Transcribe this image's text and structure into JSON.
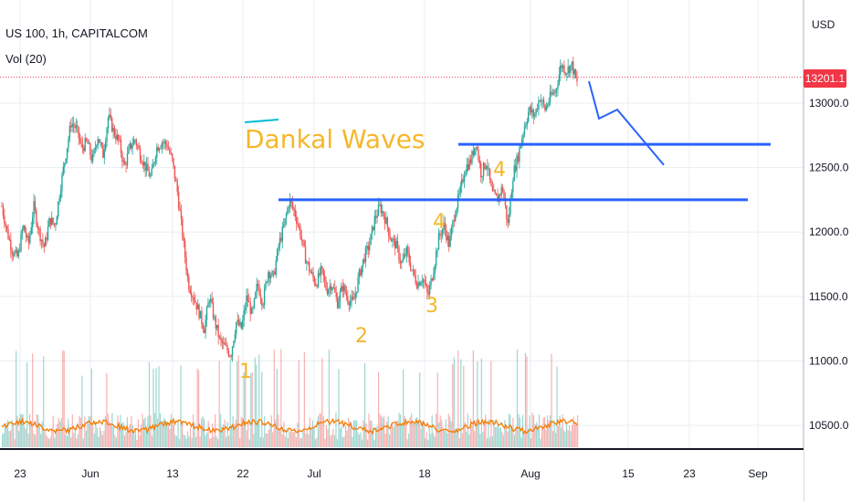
{
  "header": {
    "symbol_title": "US 100, 1h, CAPITALCOM",
    "volume_label": "Vol (20)",
    "axis_unit": "USD"
  },
  "current_price": {
    "label": "13201.1",
    "value": 13201.1,
    "color": "#f23645"
  },
  "colors": {
    "up_candle": "#26a69a",
    "down_candle": "#ef5350",
    "trend_line": "#2962ff",
    "annotation": "#f5b72a",
    "volume_ma": "#f57c00",
    "grid": "#e9edf3",
    "axis_text": "#131722"
  },
  "chart_data": {
    "type": "line",
    "ylim": [
      10300,
      13450
    ],
    "y_ticks": [
      10500,
      11000,
      11500,
      12000,
      12500,
      13000
    ],
    "y_tick_labels": [
      "10500.0",
      "11000.0",
      "11500.0",
      "12000.0",
      "12500.0",
      "13000.0"
    ],
    "x_tick_labels": [
      "23",
      "Jun",
      "13",
      "22",
      "Jul",
      "18",
      "Aug",
      "15",
      "23",
      "Sep"
    ],
    "series": [
      {
        "values": [
          12200,
          12000,
          11850,
          11800,
          12050,
          11900,
          12200,
          12000,
          11880,
          12100,
          12050,
          12350,
          12600,
          12850,
          12800,
          12650,
          12700,
          12550,
          12750,
          12600,
          12900,
          12780,
          12700,
          12500,
          12650,
          12720,
          12600,
          12500,
          12420,
          12650,
          12700,
          12680,
          12550,
          12300,
          11950,
          11600,
          11500,
          11380,
          11250,
          11500,
          11300,
          11150,
          11100,
          11050,
          11300,
          11250,
          11500,
          11350,
          11600,
          11450,
          11700,
          11650,
          11900,
          12050,
          12250,
          12150,
          12000,
          11800,
          11680,
          11600,
          11700,
          11550,
          11600,
          11450,
          11580,
          11480,
          11450,
          11650,
          11800,
          11900,
          12100,
          12200,
          12100,
          11950,
          11900,
          11750,
          11850,
          11700,
          11600,
          11650,
          11500,
          11700,
          11950,
          12050,
          11900,
          12150,
          12300,
          12500,
          12550,
          12700,
          12450,
          12550,
          12300,
          12250,
          12350,
          12050,
          12450,
          12600,
          12800,
          12950,
          12900,
          13050,
          12950,
          13050,
          13100,
          13300,
          13250,
          13300,
          13150
        ]
      }
    ],
    "horizontal_lines": [
      {
        "y": 12680,
        "x_start_index": 118,
        "x_end_index": 195
      },
      {
        "y": 12250,
        "x_start_index": 70,
        "x_end_index": 190
      }
    ],
    "projection_path": [
      {
        "index": 150,
        "price": 13170
      },
      {
        "index": 153,
        "price": 12880
      },
      {
        "index": 157,
        "price": 12950
      },
      {
        "index": 169,
        "price": 12520
      }
    ],
    "annotations": [
      {
        "text": "Dankal Waves",
        "index": 62,
        "price": 12700,
        "size": 28
      },
      {
        "text": "1",
        "index": 61,
        "price": 10950,
        "size": 22
      },
      {
        "text": "2",
        "index": 92,
        "price": 11340,
        "size": 22
      },
      {
        "text": "3",
        "index": 110,
        "price": 11600,
        "size": 22
      },
      {
        "text": "4",
        "index": 112,
        "price": 12080,
        "size": 22
      },
      {
        "text": "4",
        "index": 128,
        "price": 12520,
        "size": 22
      }
    ],
    "volume_series": {
      "ma_label": "Vol (20)"
    },
    "grid": true
  }
}
